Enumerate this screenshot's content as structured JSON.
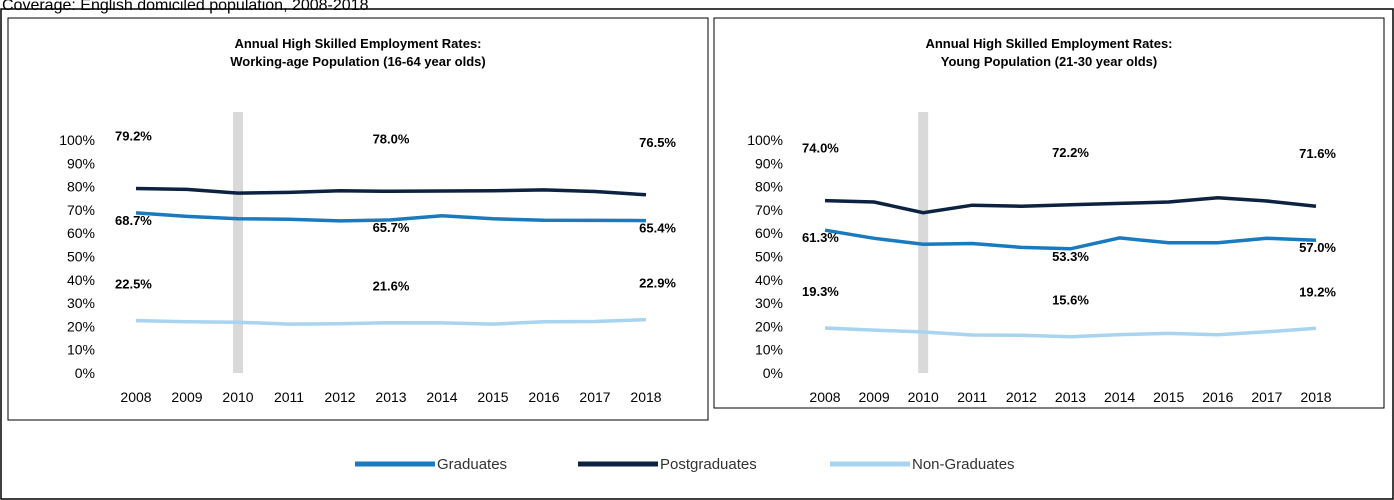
{
  "caption": "Coverage: English domiciled population, 2008-2018",
  "chart_data": [
    {
      "type": "line",
      "title": [
        "Annual High Skilled Employment Rates:",
        "Working-age Population (16-64 year olds)"
      ],
      "categories": [
        "2008",
        "2009",
        "2010",
        "2011",
        "2012",
        "2013",
        "2014",
        "2015",
        "2016",
        "2017",
        "2018"
      ],
      "ylim": [
        0,
        100
      ],
      "yticks": [
        {
          "value": 0,
          "label": "0%"
        },
        {
          "value": 10,
          "label": "10%"
        },
        {
          "value": 20,
          "label": "20%"
        },
        {
          "value": 30,
          "label": "30%"
        },
        {
          "value": 40,
          "label": "40%"
        },
        {
          "value": 50,
          "label": "50%"
        },
        {
          "value": 60,
          "label": "60%"
        },
        {
          "value": 70,
          "label": "70%"
        },
        {
          "value": 80,
          "label": "80%"
        },
        {
          "value": 90,
          "label": "90%"
        },
        {
          "value": 100,
          "label": "100%"
        }
      ],
      "series": [
        {
          "name": "Graduates",
          "color": "#1a7abf",
          "values": [
            68.7,
            67.2,
            66.2,
            66.0,
            65.3,
            65.7,
            67.5,
            66.2,
            65.6,
            65.5,
            65.4
          ],
          "value_labels": [
            "68.7%",
            null,
            null,
            null,
            null,
            "65.7%",
            null,
            null,
            null,
            null,
            "65.4%"
          ]
        },
        {
          "name": "Postgraduates",
          "color": "#0d2240",
          "values": [
            79.2,
            78.8,
            77.2,
            77.5,
            78.2,
            78.0,
            78.1,
            78.2,
            78.6,
            77.9,
            76.5
          ],
          "value_labels": [
            "79.2%",
            null,
            null,
            null,
            null,
            "78.0%",
            null,
            null,
            null,
            null,
            "76.5%"
          ]
        },
        {
          "name": "Non-Graduates",
          "color": "#a8d4f0",
          "values": [
            22.5,
            22.0,
            21.8,
            21.0,
            21.1,
            21.6,
            21.5,
            21.0,
            22.0,
            22.1,
            22.9
          ],
          "value_labels": [
            "22.5%",
            null,
            null,
            null,
            null,
            "21.6%",
            null,
            null,
            null,
            null,
            "22.9%"
          ]
        }
      ]
    },
    {
      "type": "line",
      "title": [
        "Annual High Skilled Employment Rates:",
        "Young Population (21-30 year olds)"
      ],
      "categories": [
        "2008",
        "2009",
        "2010",
        "2011",
        "2012",
        "2013",
        "2014",
        "2015",
        "2016",
        "2017",
        "2018"
      ],
      "ylim": [
        0,
        100
      ],
      "yticks": [
        {
          "value": 0,
          "label": "0%"
        },
        {
          "value": 10,
          "label": "10%"
        },
        {
          "value": 20,
          "label": "20%"
        },
        {
          "value": 30,
          "label": "30%"
        },
        {
          "value": 40,
          "label": "40%"
        },
        {
          "value": 50,
          "label": "50%"
        },
        {
          "value": 60,
          "label": "60%"
        },
        {
          "value": 70,
          "label": "70%"
        },
        {
          "value": 80,
          "label": "80%"
        },
        {
          "value": 90,
          "label": "90%"
        },
        {
          "value": 100,
          "label": "100%"
        }
      ],
      "series": [
        {
          "name": "Graduates",
          "color": "#1a7abf",
          "values": [
            61.3,
            57.8,
            55.3,
            55.6,
            53.9,
            53.3,
            58.0,
            55.9,
            55.9,
            57.8,
            57.0
          ],
          "value_labels": [
            "61.3%",
            null,
            null,
            null,
            null,
            "53.3%",
            null,
            null,
            null,
            null,
            "57.0%"
          ]
        },
        {
          "name": "Postgraduates",
          "color": "#0d2240",
          "values": [
            74.0,
            73.4,
            68.8,
            72.0,
            71.6,
            72.2,
            72.8,
            73.4,
            75.2,
            73.8,
            71.6
          ],
          "value_labels": [
            "74.0%",
            null,
            null,
            null,
            null,
            "72.2%",
            null,
            null,
            null,
            null,
            "71.6%"
          ]
        },
        {
          "name": "Non-Graduates",
          "color": "#a8d4f0",
          "values": [
            19.3,
            18.4,
            17.6,
            16.3,
            16.2,
            15.6,
            16.5,
            17.0,
            16.4,
            17.7,
            19.2
          ],
          "value_labels": [
            "19.3%",
            null,
            null,
            null,
            null,
            "15.6%",
            null,
            null,
            null,
            null,
            "19.2%"
          ]
        }
      ]
    }
  ]
}
